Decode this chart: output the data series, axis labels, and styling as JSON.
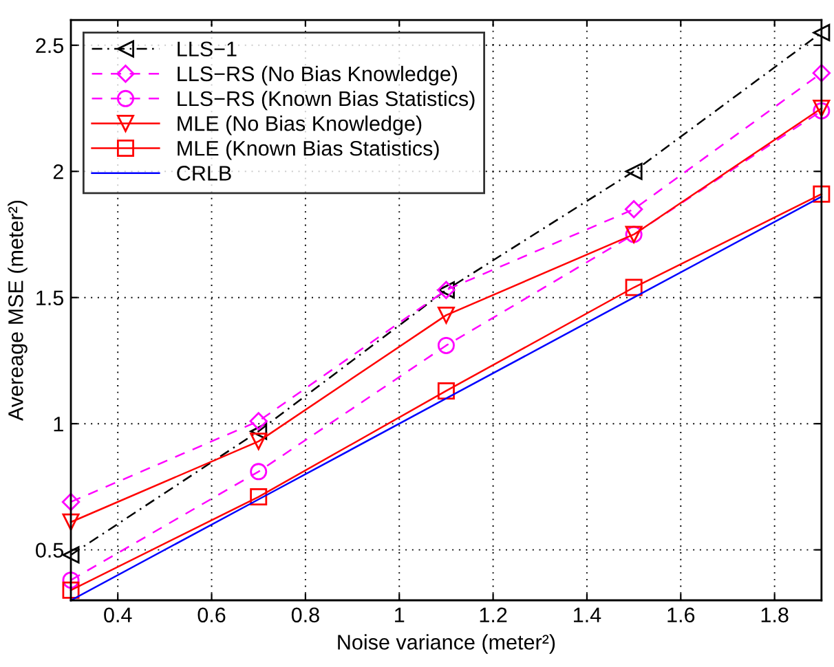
{
  "chart_data": {
    "type": "line",
    "xlabel": "Noise variance (meter²)",
    "ylabel": "Avereage MSE (meter²)",
    "x": [
      0.3,
      0.7,
      1.1,
      1.5,
      1.9
    ],
    "series": [
      {
        "name": "LLS−1",
        "color": "#000000",
        "line_style": "dashdot",
        "marker": "triangle-left",
        "values": [
          0.48,
          0.97,
          1.53,
          2.0,
          2.55
        ]
      },
      {
        "name": "LLS−RS (No Bias Knowledge)",
        "color": "#ff00ff",
        "line_style": "dashed",
        "marker": "diamond",
        "values": [
          0.69,
          1.01,
          1.53,
          1.85,
          2.39
        ]
      },
      {
        "name": "LLS−RS (Known Bias Statistics)",
        "color": "#ff00ff",
        "line_style": "dashed",
        "marker": "circle",
        "values": [
          0.38,
          0.81,
          1.31,
          1.75,
          2.24
        ]
      },
      {
        "name": "MLE (No Bias Knowledge)",
        "color": "#ff0000",
        "line_style": "solid",
        "marker": "triangle-down",
        "values": [
          0.61,
          0.93,
          1.43,
          1.75,
          2.25
        ]
      },
      {
        "name": "MLE (Known Bias Statistics)",
        "color": "#ff0000",
        "line_style": "solid",
        "marker": "square",
        "values": [
          0.34,
          0.71,
          1.13,
          1.54,
          1.91
        ]
      },
      {
        "name": "CRLB",
        "color": "#0000ff",
        "line_style": "solid",
        "marker": "none",
        "values": [
          0.3,
          0.7,
          1.1,
          1.5,
          1.9
        ]
      }
    ],
    "xlim": [
      0.3,
      1.9
    ],
    "xticks": [
      0.4,
      0.6,
      0.8,
      1,
      1.2,
      1.4,
      1.6,
      1.8
    ],
    "ylim": [
      0.3,
      2.6
    ],
    "yticks": [
      0.5,
      1,
      1.5,
      2,
      2.5
    ],
    "grid": true,
    "legend": "top left"
  }
}
